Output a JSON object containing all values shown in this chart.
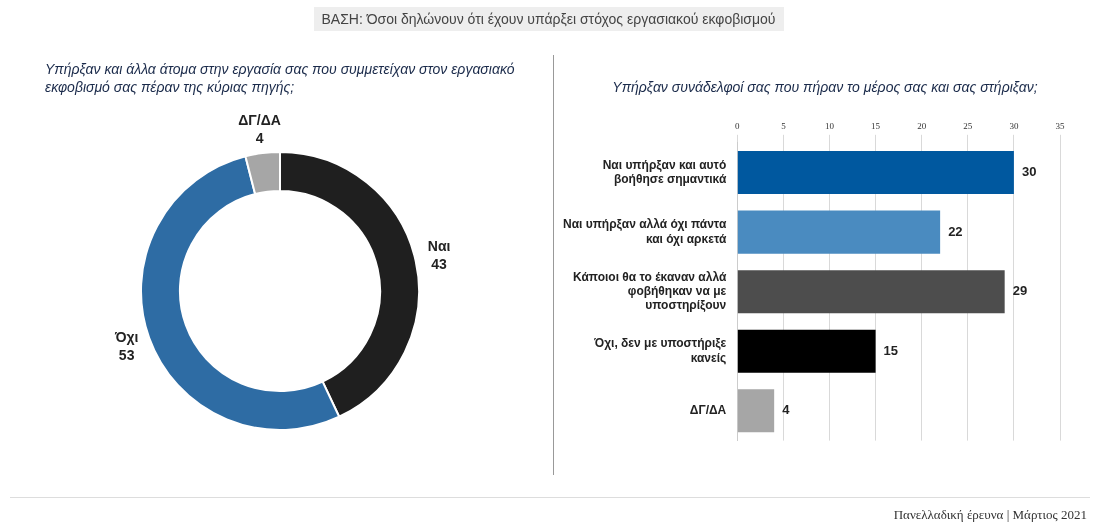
{
  "chart_data": [
    {
      "type": "donut",
      "title": "Υπήρξαν και άλλα άτομα στην εργασία σας που συμμετείχαν στον εργασιακό εκφοβισμό σας πέραν της κύριας πηγής;",
      "categories": [
        "Ναι",
        "Όχι",
        "ΔΓ/ΔΑ"
      ],
      "values": [
        43,
        53,
        4
      ],
      "colors": [
        "#1f1f1f",
        "#2e6ca4",
        "#a6a6a6"
      ],
      "data_labels": true,
      "legend": false,
      "annotations": [
        "ΒΑΣΗ: Όσοι δηλώνουν ότι έχουν υπάρξει στόχος εργασιακού εκφοβισμού"
      ]
    },
    {
      "type": "bar",
      "orientation": "horizontal",
      "title": "Υπήρξαν συνάδελφοί σας που πήραν το μέρος σας και σας στήριξαν;",
      "categories": [
        "Ναι υπήρξαν και αυτό βοήθησε σημαντικά",
        "Ναι υπήρξαν αλλά όχι πάντα και όχι αρκετά",
        "Κάποιοι θα το έκαναν αλλά φοβήθηκαν να με υποστηρίξουν",
        "Όχι, δεν με υποστήριξε κανείς",
        "ΔΓ/ΔΑ"
      ],
      "values": [
        30,
        22,
        29,
        15,
        4
      ],
      "colors": [
        "#00589f",
        "#4a8bc0",
        "#4d4d4d",
        "#000000",
        "#a6a6a6"
      ],
      "xlim": [
        0,
        35
      ],
      "xticks": [
        0,
        5,
        10,
        15,
        20,
        25,
        30,
        35
      ],
      "grid": "x",
      "data_labels": true,
      "legend": false,
      "annotations": [
        "Πανελλαδική έρευνα | Μάρτιος 2021"
      ]
    }
  ]
}
